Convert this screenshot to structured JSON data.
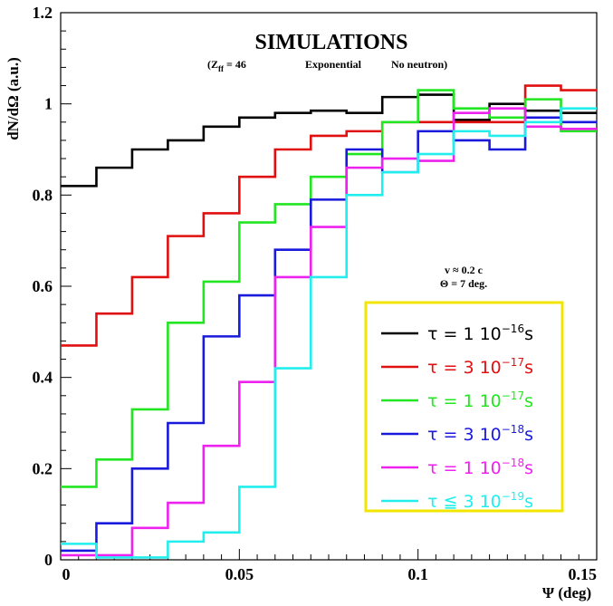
{
  "chart_data": {
    "type": "line",
    "step": true,
    "title": "SIMULATIONS",
    "subtitle": {
      "z_prefix": "(Z",
      "z_sub": "ff",
      "z_value": " = 46",
      "model": "Exponential",
      "neutron": "No neutron)"
    },
    "annotation": [
      "v ≈ 0.2 c",
      "Θ = 7 deg."
    ],
    "xlabel": "Ψ (deg)",
    "ylabel": "dN/dΩ (a.u.)",
    "xlim": [
      0,
      0.15
    ],
    "ylim": [
      0,
      1.2
    ],
    "xticks": [
      "0",
      "0.05",
      "0.1",
      "0.15"
    ],
    "yticks": [
      "0",
      "0.2",
      "0.4",
      "0.6",
      "0.8",
      "1",
      "1.2"
    ],
    "bin_edges": [
      0,
      0.01,
      0.02,
      0.03,
      0.04,
      0.05,
      0.06,
      0.07,
      0.08,
      0.09,
      0.1,
      0.11,
      0.12,
      0.13,
      0.14,
      0.15
    ],
    "legend_position": "lower-right",
    "legend_border_color": "#f2e600",
    "series": [
      {
        "name": "τ = 1 10^-16 s",
        "label_main": "τ = 1 10",
        "label_exp": "−16",
        "label_unit": "s",
        "color": "#000000",
        "values": [
          0.82,
          0.86,
          0.9,
          0.92,
          0.95,
          0.97,
          0.98,
          0.985,
          0.98,
          1.015,
          1.02,
          0.965,
          1.0,
          0.985,
          0.98
        ]
      },
      {
        "name": "τ = 3 10^-17 s",
        "label_main": "τ = 3 10",
        "label_exp": "−17",
        "label_unit": "s",
        "color": "#e01010",
        "values": [
          0.47,
          0.54,
          0.62,
          0.71,
          0.76,
          0.84,
          0.9,
          0.93,
          0.94,
          0.96,
          0.96,
          0.96,
          0.96,
          1.04,
          1.03
        ]
      },
      {
        "name": "τ = 1 10^-17 s",
        "label_main": "τ = 1 10",
        "label_exp": "−17",
        "label_unit": "s",
        "color": "#22e622",
        "values": [
          0.16,
          0.22,
          0.33,
          0.52,
          0.61,
          0.74,
          0.78,
          0.84,
          0.89,
          0.96,
          1.03,
          0.99,
          0.97,
          1.01,
          0.94
        ]
      },
      {
        "name": "τ = 3 10^-18 s",
        "label_main": "τ = 3 10",
        "label_exp": "−18",
        "label_unit": "s",
        "color": "#1a1adc",
        "values": [
          0.02,
          0.08,
          0.2,
          0.3,
          0.49,
          0.58,
          0.68,
          0.79,
          0.9,
          0.85,
          0.94,
          0.92,
          0.9,
          0.97,
          0.96
        ]
      },
      {
        "name": "τ = 1 10^-18 s",
        "label_main": "τ = 1 10",
        "label_exp": "−18",
        "label_unit": "s",
        "color": "#ee22ee",
        "values": [
          0.01,
          0.01,
          0.07,
          0.125,
          0.25,
          0.39,
          0.62,
          0.73,
          0.86,
          0.88,
          0.875,
          0.98,
          0.99,
          0.95,
          0.945
        ]
      },
      {
        "name": "τ ≦ 3 10^-19 s",
        "label_main": "τ ≦ 3 10",
        "label_exp": "−19",
        "label_unit": "s",
        "color": "#22eeee",
        "values": [
          0.035,
          0.005,
          0.005,
          0.04,
          0.06,
          0.16,
          0.42,
          0.62,
          0.8,
          0.85,
          0.89,
          0.94,
          0.93,
          0.96,
          0.99
        ]
      }
    ]
  }
}
